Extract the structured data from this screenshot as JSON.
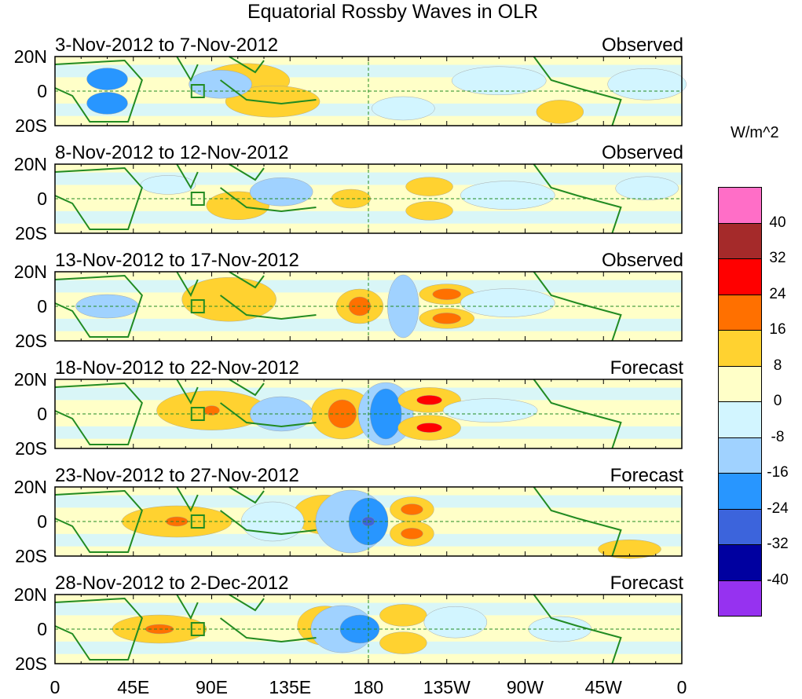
{
  "title": "Equatorial Rossby Waves in OLR",
  "panels": [
    {
      "date_range": "3-Nov-2012 to 7-Nov-2012",
      "type": "Observed"
    },
    {
      "date_range": "8-Nov-2012 to 12-Nov-2012",
      "type": "Observed"
    },
    {
      "date_range": "13-Nov-2012 to 17-Nov-2012",
      "type": "Observed"
    },
    {
      "date_range": "18-Nov-2012 to 22-Nov-2012",
      "type": "Forecast"
    },
    {
      "date_range": "23-Nov-2012 to 27-Nov-2012",
      "type": "Forecast"
    },
    {
      "date_range": "28-Nov-2012 to 2-Dec-2012",
      "type": "Forecast"
    }
  ],
  "lat_labels": [
    "20N",
    "0",
    "20S"
  ],
  "lon_labels": [
    "0",
    "45E",
    "90E",
    "135E",
    "180",
    "135W",
    "90W",
    "45W",
    "0"
  ],
  "colorbar": {
    "units": "W/m^2",
    "labels": [
      "40",
      "32",
      "24",
      "16",
      "8",
      "0",
      "-8",
      "-16",
      "-24",
      "-32",
      "-40"
    ],
    "colors": [
      "#ff6ec7",
      "#a52a2a",
      "#ff0000",
      "#ff7000",
      "#ffd230",
      "#ffffc8",
      "#d2f5ff",
      "#a0d2ff",
      "#2896ff",
      "#3c64dc",
      "#0000a0",
      "#9632f0"
    ]
  },
  "colors": {
    "coast": "#228b22",
    "guide": "#228b22",
    "bg": "#ffffc8"
  }
}
